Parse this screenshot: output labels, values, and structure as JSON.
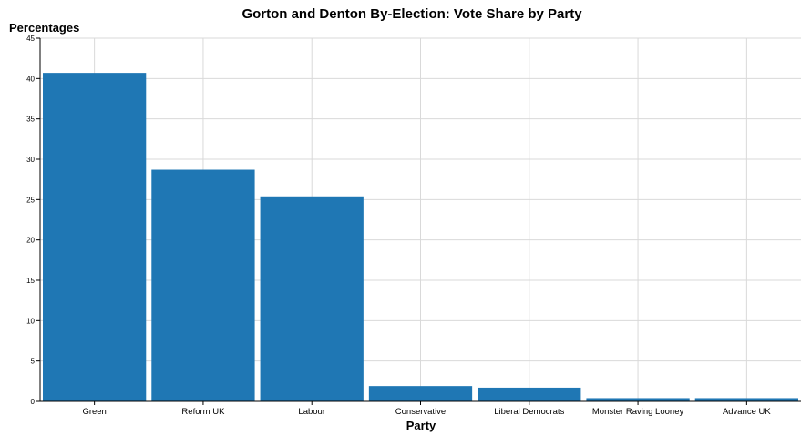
{
  "chart_data": {
    "type": "bar",
    "title": "Gorton and Denton By-Election: Vote Share by Party",
    "xlabel": "Party",
    "ylabel": "Percentages",
    "categories": [
      "Green",
      "Reform UK",
      "Labour",
      "Conservative",
      "Liberal Democrats",
      "Monster Raving Looney",
      "Advance UK"
    ],
    "values": [
      40.7,
      28.7,
      25.4,
      1.9,
      1.7,
      0.4,
      0.4
    ],
    "ylim": [
      0,
      45
    ],
    "yticks": [
      "0",
      "5",
      "10",
      "15",
      "20",
      "25",
      "30",
      "35",
      "40",
      "45"
    ],
    "grid": true,
    "legend": "none",
    "colors": {
      "bar": "#1f77b4",
      "grid": "#d9d9d9",
      "axis": "#000000"
    }
  }
}
